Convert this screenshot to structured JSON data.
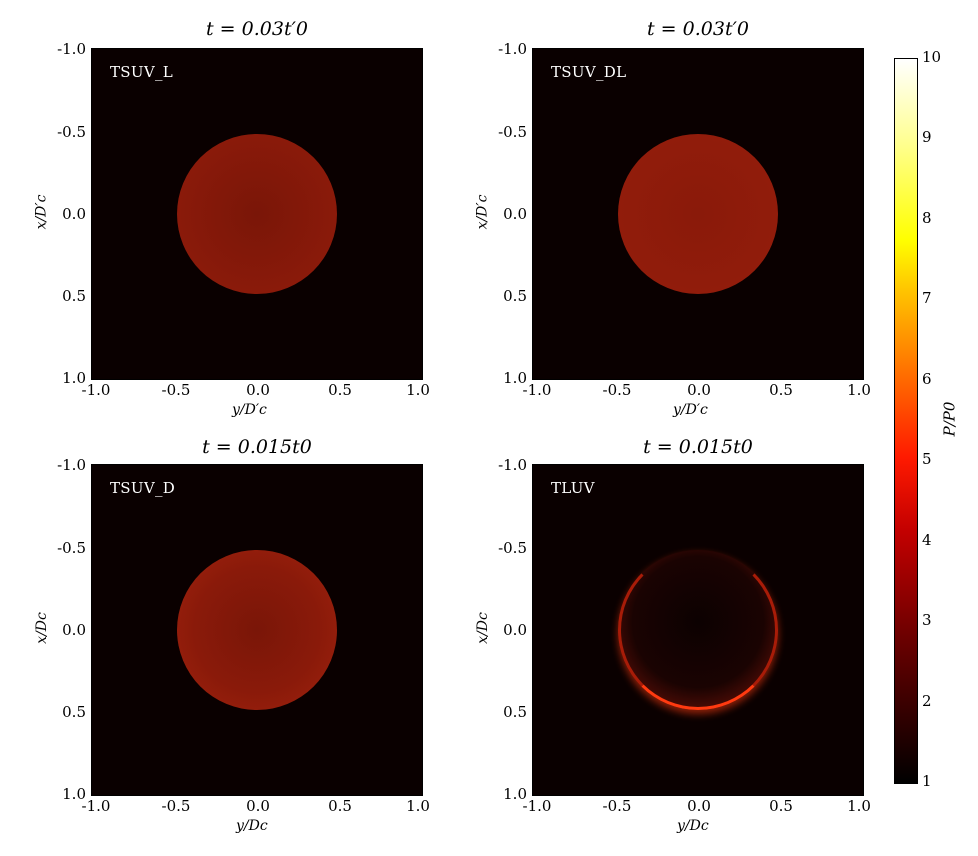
{
  "chart_data": [
    {
      "type": "heatmap",
      "title": "t = 0.03t′0",
      "panel_label": "TSUV_L",
      "xlabel": "y/D′c",
      "ylabel": "x/D′c",
      "xlim": [
        -1.0,
        1.0
      ],
      "ylim": [
        1.0,
        -1.0
      ],
      "xticks": [
        "-1.0",
        "-0.5",
        "0.0",
        "0.5",
        "1.0"
      ],
      "yticks": [
        "-1.0",
        "-0.5",
        "0.0",
        "0.5",
        "1.0"
      ],
      "feature": {
        "shape": "disc",
        "center": [
          0.0,
          0.0
        ],
        "radius": 0.48,
        "value_approx": 3.0,
        "edge_enhanced": false
      }
    },
    {
      "type": "heatmap",
      "title": "t = 0.03t′0",
      "panel_label": "TSUV_DL",
      "xlabel": "y/D′c",
      "ylabel": "x/D′c",
      "xlim": [
        -1.0,
        1.0
      ],
      "ylim": [
        1.0,
        -1.0
      ],
      "xticks": [
        "-1.0",
        "-0.5",
        "0.0",
        "0.5",
        "1.0"
      ],
      "yticks": [
        "-1.0",
        "-0.5",
        "0.0",
        "0.5",
        "1.0"
      ],
      "feature": {
        "shape": "disc",
        "center": [
          0.0,
          0.0
        ],
        "radius": 0.48,
        "value_approx": 3.0,
        "edge_enhanced": false
      }
    },
    {
      "type": "heatmap",
      "title": "t = 0.015t0",
      "panel_label": "TSUV_D",
      "xlabel": "y/Dc",
      "ylabel": "x/Dc",
      "xlim": [
        -1.0,
        1.0
      ],
      "ylim": [
        1.0,
        -1.0
      ],
      "xticks": [
        "-1.0",
        "-0.5",
        "0.0",
        "0.5",
        "1.0"
      ],
      "yticks": [
        "-1.0",
        "-0.5",
        "0.0",
        "0.5",
        "1.0"
      ],
      "feature": {
        "shape": "disc",
        "center": [
          0.0,
          0.0
        ],
        "radius": 0.48,
        "value_approx": 3.0,
        "edge_enhanced": false
      }
    },
    {
      "type": "heatmap",
      "title": "t = 0.015t0",
      "panel_label": "TLUV",
      "xlabel": "y/Dc",
      "ylabel": "x/Dc",
      "xlim": [
        -1.0,
        1.0
      ],
      "ylim": [
        1.0,
        -1.0
      ],
      "xticks": [
        "-1.0",
        "-0.5",
        "0.0",
        "0.5",
        "1.0"
      ],
      "yticks": [
        "-1.0",
        "-0.5",
        "0.0",
        "0.5",
        "1.0"
      ],
      "feature": {
        "shape": "ring",
        "center": [
          0.0,
          0.0
        ],
        "radius": 0.48,
        "value_approx": 4.5,
        "edge_enhanced": true,
        "brightest_side": "bottom"
      }
    }
  ],
  "colorbar": {
    "label": "P/P0",
    "min": 1,
    "max": 10,
    "ticks": [
      "1",
      "2",
      "3",
      "4",
      "5",
      "6",
      "7",
      "8",
      "9",
      "10"
    ],
    "colormap": "hot"
  }
}
